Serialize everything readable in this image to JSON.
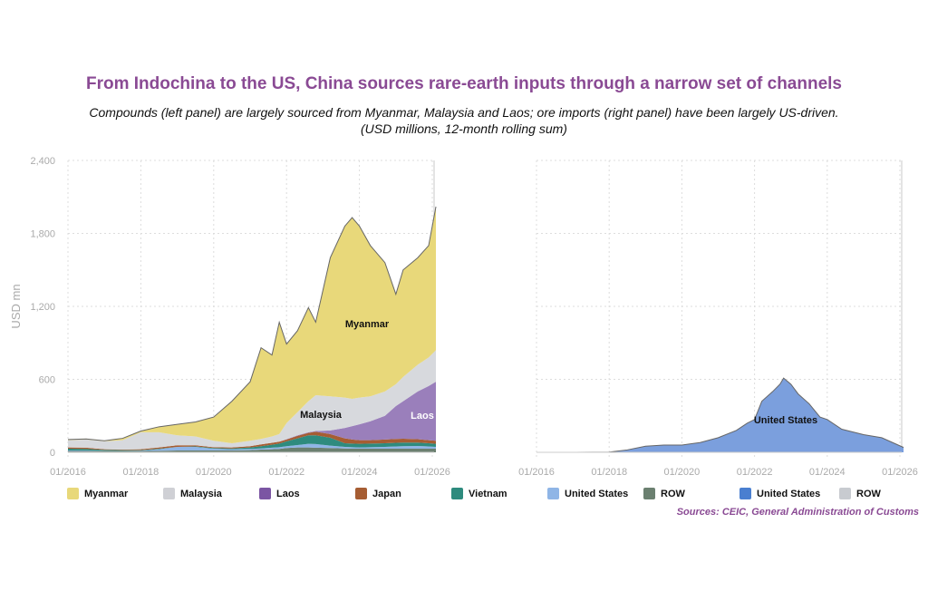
{
  "title": "From Indochina to the US, China sources rare-earth inputs through a narrow set of channels",
  "subtitle": "Compounds (left panel) are largely sourced from Myanmar, Malaysia and Laos; ore imports (right panel) have been largely US-driven. (USD millions, 12-month rolling sum)",
  "source": "Sources: CEIC, General Administration of Customs",
  "chart_data": [
    {
      "type": "area",
      "stacked": true,
      "panel": "left",
      "ylabel": "USD mn",
      "ylim": [
        0,
        2400
      ],
      "yticks": [
        "0",
        "600",
        "1,200",
        "1,800",
        "2,400"
      ],
      "ytick_values": [
        0,
        600,
        1200,
        1800,
        2400
      ],
      "xticks": [
        "01/2016",
        "01/2018",
        "01/2020",
        "01/2022",
        "01/2024",
        "01/2026"
      ],
      "xtick_values": [
        2016,
        2018,
        2020,
        2022,
        2024,
        2026
      ],
      "xlim": [
        2016,
        2026.1
      ],
      "x": [
        2016,
        2016.5,
        2017,
        2017.5,
        2018,
        2018.5,
        2019,
        2019.5,
        2020,
        2020.5,
        2021,
        2021.3,
        2021.6,
        2021.8,
        2022,
        2022.3,
        2022.6,
        2022.8,
        2023.2,
        2023.6,
        2023.8,
        2024,
        2024.3,
        2024.7,
        2025,
        2025.2,
        2025.6,
        2025.9,
        2026.1
      ],
      "series": [
        {
          "name": "ROW",
          "color": "#6b8070",
          "values": [
            10,
            10,
            10,
            10,
            10,
            12,
            15,
            15,
            15,
            15,
            18,
            22,
            25,
            28,
            35,
            40,
            40,
            38,
            35,
            32,
            30,
            30,
            30,
            30,
            30,
            30,
            30,
            30,
            30
          ]
        },
        {
          "name": "United States",
          "color": "#8fb5e6",
          "values": [
            5,
            5,
            2,
            2,
            4,
            13,
            30,
            30,
            15,
            10,
            10,
            10,
            13,
            14,
            15,
            20,
            30,
            30,
            20,
            13,
            12,
            10,
            12,
            15,
            18,
            20,
            22,
            18,
            15
          ]
        },
        {
          "name": "Vietnam",
          "color": "#2e8b7e",
          "values": [
            15,
            13,
            8,
            6,
            4,
            5,
            0,
            3,
            5,
            7,
            12,
            18,
            24,
            30,
            40,
            55,
            70,
            72,
            65,
            30,
            30,
            30,
            30,
            30,
            30,
            30,
            28,
            27,
            25
          ]
        },
        {
          "name": "Japan",
          "color": "#a65d33",
          "values": [
            10,
            10,
            5,
            4,
            7,
            10,
            13,
            10,
            7,
            8,
            10,
            15,
            16,
            16,
            15,
            20,
            20,
            30,
            30,
            40,
            33,
            30,
            28,
            30,
            32,
            32,
            28,
            25,
            25
          ]
        },
        {
          "name": "Laos",
          "color": "#9a7fbb",
          "label_color": "#fff",
          "label": "Laos",
          "values": [
            0,
            0,
            0,
            0,
            0,
            0,
            0,
            0,
            0,
            0,
            0,
            0,
            0,
            0,
            3,
            5,
            5,
            5,
            30,
            85,
            110,
            130,
            155,
            195,
            270,
            308,
            392,
            445,
            485
          ]
        },
        {
          "name": "Malaysia",
          "color": "#d7d9dd",
          "label": "Malaysia",
          "values": [
            60,
            67,
            65,
            78,
            140,
            125,
            82,
            72,
            53,
            35,
            45,
            45,
            52,
            62,
            132,
            190,
            255,
            295,
            280,
            250,
            225,
            220,
            205,
            200,
            180,
            200,
            220,
            235,
            260
          ]
        },
        {
          "name": "Myanmar",
          "color": "#e8d87a",
          "label": "Myanmar",
          "values": [
            5,
            5,
            5,
            15,
            10,
            45,
            90,
            120,
            195,
            345,
            485,
            750,
            670,
            920,
            650,
            670,
            770,
            600,
            1140,
            1410,
            1490,
            1410,
            1240,
            1060,
            740,
            880,
            880,
            920,
            1180
          ]
        }
      ]
    },
    {
      "type": "area",
      "stacked": true,
      "panel": "right",
      "ylim": [
        0,
        2400
      ],
      "xticks": [
        "01/2016",
        "01/2018",
        "01/2020",
        "01/2022",
        "01/2024",
        "01/2026"
      ],
      "xtick_values": [
        2016,
        2018,
        2020,
        2022,
        2024,
        2026
      ],
      "xlim": [
        2016,
        2026.1
      ],
      "x": [
        2016,
        2017,
        2018,
        2018.5,
        2019,
        2019.5,
        2020,
        2020.5,
        2021,
        2021.5,
        2021.8,
        2022,
        2022.2,
        2022.5,
        2022.7,
        2022.8,
        2023,
        2023.2,
        2023.5,
        2023.8,
        2024,
        2024.4,
        2024.8,
        2025,
        2025.5,
        2026.1
      ],
      "series": [
        {
          "name": "ROW",
          "color": "#c8cbd0",
          "values": [
            0,
            0,
            0,
            0,
            0,
            0,
            0,
            0,
            0,
            0,
            0,
            0,
            0,
            0,
            0,
            0,
            0,
            0,
            0,
            0,
            0,
            0,
            0,
            0,
            0,
            0
          ]
        },
        {
          "name": "United States",
          "color": "#7b9fdd",
          "legend_color": "#4a7fd0",
          "label": "United States",
          "values": [
            0,
            0,
            2,
            20,
            50,
            60,
            60,
            80,
            120,
            180,
            240,
            270,
            420,
            500,
            560,
            610,
            560,
            480,
            400,
            290,
            270,
            190,
            160,
            145,
            120,
            40
          ]
        }
      ]
    }
  ],
  "legend": [
    {
      "label": "Myanmar",
      "color": "#e8d87a"
    },
    {
      "label": "Malaysia",
      "color": "#cfd0d5"
    },
    {
      "label": "Laos",
      "color": "#7b55a3"
    },
    {
      "label": "Japan",
      "color": "#a65d33"
    },
    {
      "label": "Vietnam",
      "color": "#2e8b7e"
    },
    {
      "label": "United States",
      "color": "#8fb5e6"
    },
    {
      "label": "ROW",
      "color": "#6b8070"
    },
    {
      "label": "United States",
      "color": "#4a7fd0"
    },
    {
      "label": "ROW",
      "color": "#c8cbd0"
    }
  ]
}
